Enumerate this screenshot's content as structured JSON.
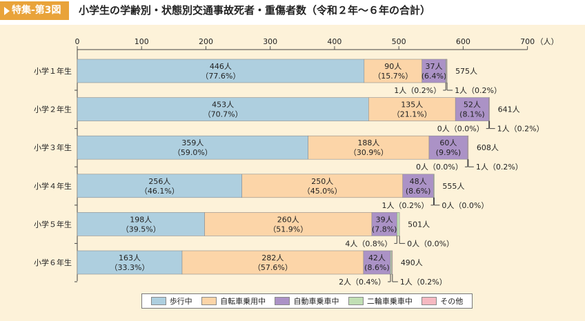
{
  "header": {
    "tag_label": "特集-第3図",
    "title": "小学生の学齢別・状態別交通事故死者・重傷者数（令和２年〜６年の合計）"
  },
  "colors": {
    "tag": "#e9a33a",
    "panel": "#fdf2d9",
    "walk": "#aecfdf",
    "bicycle": "#fcd5a8",
    "car": "#ab92c6",
    "motorcycle": "#c1dfb4",
    "other": "#f6b9c1"
  },
  "chart_data": {
    "type": "bar",
    "orientation": "horizontal",
    "stacked": true,
    "xlim": [
      0,
      700
    ],
    "xticks": [
      0,
      100,
      200,
      300,
      400,
      500,
      600,
      700
    ],
    "x_unit_label": "（人）",
    "legend_position": "bottom",
    "categories": [
      "小学１年生",
      "小学２年生",
      "小学３年生",
      "小学４年生",
      "小学５年生",
      "小学６年生"
    ],
    "series": [
      {
        "name": "歩行中",
        "color_key": "walk",
        "values": [
          446,
          453,
          359,
          256,
          198,
          163
        ],
        "labels": [
          "446人",
          "453人",
          "359人",
          "256人",
          "198人",
          "163人"
        ],
        "pct": [
          "（77.6%）",
          "（70.7%）",
          "（59.0%）",
          "（46.1%）",
          "（39.5%）",
          "（33.3%）"
        ]
      },
      {
        "name": "自転車乗用中",
        "color_key": "bicycle",
        "values": [
          90,
          135,
          188,
          250,
          260,
          282
        ],
        "labels": [
          "90人",
          "135人",
          "188人",
          "250人",
          "260人",
          "282人"
        ],
        "pct": [
          "（15.7%）",
          "（21.1%）",
          "（30.9%）",
          "（45.0%）",
          "（51.9%）",
          "（57.6%）"
        ]
      },
      {
        "name": "自動車乗車中",
        "color_key": "car",
        "values": [
          37,
          52,
          60,
          48,
          39,
          42
        ],
        "labels": [
          "37人",
          "52人",
          "60人",
          "48人",
          "39人",
          "42人"
        ],
        "pct": [
          "(6.4%)",
          "(8.1%)",
          "(9.9%)",
          "(8.6%)",
          "(7.8%)",
          "(8.6%)"
        ]
      },
      {
        "name": "二輪車乗車中",
        "color_key": "motorcycle",
        "values": [
          1,
          0,
          0,
          1,
          4,
          2
        ],
        "labels": [
          "1人（0.2%）",
          "0人（0.0%）",
          "0人（0.0%）",
          "1人（0.2%）",
          "4人（0.8%）",
          "2人（0.4%）"
        ]
      },
      {
        "name": "その他",
        "color_key": "other",
        "values": [
          1,
          1,
          1,
          0,
          0,
          1
        ],
        "labels": [
          "1人（0.2%）",
          "1人（0.2%）",
          "1人（0.2%）",
          "0人（0.0%）",
          "0人（0.0%）",
          "1人（0.2%）"
        ]
      }
    ],
    "totals": [
      575,
      641,
      608,
      555,
      501,
      490
    ],
    "total_labels": [
      "575人",
      "641人",
      "608人",
      "555人",
      "501人",
      "490人"
    ]
  }
}
